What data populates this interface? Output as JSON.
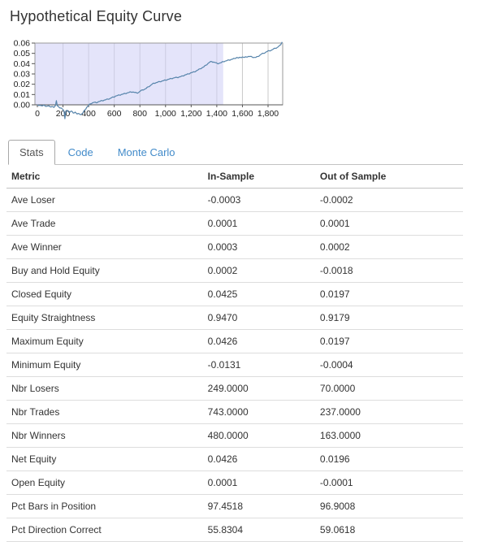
{
  "page": {
    "title": "Hypothetical Equity Curve"
  },
  "tabs": [
    {
      "label": "Stats",
      "active": true
    },
    {
      "label": "Code",
      "active": false
    },
    {
      "label": "Monte Carlo",
      "active": false
    }
  ],
  "table": {
    "columns": [
      "Metric",
      "In-Sample",
      "Out of Sample"
    ],
    "rows": [
      [
        "Ave Loser",
        "-0.0003",
        "-0.0002"
      ],
      [
        "Ave Trade",
        "0.0001",
        "0.0001"
      ],
      [
        "Ave Winner",
        "0.0003",
        "0.0002"
      ],
      [
        "Buy and Hold Equity",
        "0.0002",
        "-0.0018"
      ],
      [
        "Closed Equity",
        "0.0425",
        "0.0197"
      ],
      [
        "Equity Straightness",
        "0.9470",
        "0.9179"
      ],
      [
        "Maximum Equity",
        "0.0426",
        "0.0197"
      ],
      [
        "Minimum Equity",
        "-0.0131",
        "-0.0004"
      ],
      [
        "Nbr Losers",
        "249.0000",
        "70.0000"
      ],
      [
        "Nbr Trades",
        "743.0000",
        "237.0000"
      ],
      [
        "Nbr Winners",
        "480.0000",
        "163.0000"
      ],
      [
        "Net Equity",
        "0.0426",
        "0.0196"
      ],
      [
        "Open Equity",
        "0.0001",
        "-0.0001"
      ],
      [
        "Pct Bars in Position",
        "97.4518",
        "96.9008"
      ],
      [
        "Pct Direction Correct",
        "55.8304",
        "59.0618"
      ]
    ]
  },
  "chart_data": {
    "type": "line",
    "title": "Hypothetical Equity Curve",
    "xlabel": "",
    "ylabel": "",
    "xlim": [
      0,
      1914
    ],
    "ylim": [
      0,
      0.06
    ],
    "grid": "vertical-only",
    "legend": "none",
    "x_ticks": [
      "0",
      "200",
      "400",
      "600",
      "800",
      "1,000",
      "1,200",
      "1,400",
      "1,600",
      "1,800"
    ],
    "x_tick_values": [
      0,
      200,
      400,
      600,
      800,
      1000,
      1200,
      1400,
      1600,
      1800
    ],
    "y_ticks": [
      "0.00",
      "0.01",
      "0.02",
      "0.03",
      "0.04",
      "0.05",
      "0.06"
    ],
    "y_tick_values": [
      0,
      0.01,
      0.02,
      0.03,
      0.04,
      0.05,
      0.06
    ],
    "in_sample_region": [
      0,
      1450
    ],
    "line_color": "#5684ab",
    "shade_color": "rgba(206,206,245,0.55)",
    "grid_color": "#c9c9c9",
    "frame_color": "#999999",
    "axis_color": "#555555",
    "points": [
      [
        0,
        0
      ],
      [
        20,
        -0.0005
      ],
      [
        40,
        -0.001
      ],
      [
        55,
        -0.0005
      ],
      [
        70,
        -0.0015
      ],
      [
        85,
        -0.001
      ],
      [
        100,
        -0.002
      ],
      [
        115,
        -0.0015
      ],
      [
        130,
        -0.0025
      ],
      [
        140,
        -0.001
      ],
      [
        148,
        0.004
      ],
      [
        156,
        -0.001
      ],
      [
        170,
        -0.0025
      ],
      [
        185,
        -0.003
      ],
      [
        200,
        -0.0045
      ],
      [
        210,
        -0.0075
      ],
      [
        215,
        -0.0135
      ],
      [
        222,
        -0.006
      ],
      [
        235,
        -0.0055
      ],
      [
        250,
        -0.0075
      ],
      [
        265,
        -0.006
      ],
      [
        280,
        -0.008
      ],
      [
        295,
        -0.007
      ],
      [
        310,
        -0.009
      ],
      [
        325,
        -0.0085
      ],
      [
        340,
        -0.0095
      ],
      [
        355,
        -0.008
      ],
      [
        370,
        -0.005
      ],
      [
        385,
        -0.0025
      ],
      [
        400,
        -0.0005
      ],
      [
        415,
        0.001
      ],
      [
        430,
        0.002
      ],
      [
        445,
        0.0025
      ],
      [
        460,
        0.002
      ],
      [
        475,
        0.003
      ],
      [
        490,
        0.0035
      ],
      [
        505,
        0.004
      ],
      [
        520,
        0.0045
      ],
      [
        535,
        0.005
      ],
      [
        550,
        0.0055
      ],
      [
        565,
        0.006
      ],
      [
        580,
        0.007
      ],
      [
        595,
        0.0075
      ],
      [
        610,
        0.0085
      ],
      [
        625,
        0.009
      ],
      [
        640,
        0.0095
      ],
      [
        655,
        0.01
      ],
      [
        670,
        0.0105
      ],
      [
        685,
        0.011
      ],
      [
        700,
        0.0115
      ],
      [
        715,
        0.012
      ],
      [
        730,
        0.0125
      ],
      [
        745,
        0.0125
      ],
      [
        760,
        0.012
      ],
      [
        775,
        0.0115
      ],
      [
        790,
        0.012
      ],
      [
        805,
        0.0135
      ],
      [
        820,
        0.0145
      ],
      [
        835,
        0.015
      ],
      [
        850,
        0.016
      ],
      [
        865,
        0.0175
      ],
      [
        880,
        0.0185
      ],
      [
        895,
        0.02
      ],
      [
        910,
        0.021
      ],
      [
        925,
        0.0215
      ],
      [
        940,
        0.022
      ],
      [
        955,
        0.0225
      ],
      [
        970,
        0.023
      ],
      [
        985,
        0.0235
      ],
      [
        1000,
        0.024
      ],
      [
        1015,
        0.0245
      ],
      [
        1030,
        0.025
      ],
      [
        1045,
        0.0255
      ],
      [
        1060,
        0.026
      ],
      [
        1075,
        0.0265
      ],
      [
        1090,
        0.0265
      ],
      [
        1105,
        0.027
      ],
      [
        1120,
        0.0275
      ],
      [
        1135,
        0.028
      ],
      [
        1150,
        0.029
      ],
      [
        1165,
        0.0295
      ],
      [
        1180,
        0.03
      ],
      [
        1195,
        0.031
      ],
      [
        1210,
        0.0315
      ],
      [
        1225,
        0.032
      ],
      [
        1240,
        0.033
      ],
      [
        1255,
        0.034
      ],
      [
        1270,
        0.035
      ],
      [
        1285,
        0.036
      ],
      [
        1300,
        0.037
      ],
      [
        1315,
        0.0385
      ],
      [
        1330,
        0.04
      ],
      [
        1345,
        0.0415
      ],
      [
        1360,
        0.042
      ],
      [
        1375,
        0.0415
      ],
      [
        1390,
        0.041
      ],
      [
        1405,
        0.04
      ],
      [
        1420,
        0.0405
      ],
      [
        1435,
        0.041
      ],
      [
        1450,
        0.042
      ],
      [
        1465,
        0.0425
      ],
      [
        1480,
        0.043
      ],
      [
        1495,
        0.0435
      ],
      [
        1510,
        0.044
      ],
      [
        1525,
        0.0445
      ],
      [
        1540,
        0.045
      ],
      [
        1555,
        0.046
      ],
      [
        1570,
        0.0455
      ],
      [
        1585,
        0.046
      ],
      [
        1600,
        0.0465
      ],
      [
        1615,
        0.046
      ],
      [
        1630,
        0.0465
      ],
      [
        1645,
        0.047
      ],
      [
        1660,
        0.047
      ],
      [
        1675,
        0.0465
      ],
      [
        1690,
        0.046
      ],
      [
        1705,
        0.046
      ],
      [
        1720,
        0.047
      ],
      [
        1735,
        0.048
      ],
      [
        1750,
        0.0495
      ],
      [
        1765,
        0.05
      ],
      [
        1780,
        0.051
      ],
      [
        1795,
        0.052
      ],
      [
        1810,
        0.0525
      ],
      [
        1825,
        0.053
      ],
      [
        1840,
        0.054
      ],
      [
        1855,
        0.055
      ],
      [
        1870,
        0.0555
      ],
      [
        1885,
        0.057
      ],
      [
        1895,
        0.058
      ],
      [
        1905,
        0.06
      ],
      [
        1910,
        0.061
      ]
    ]
  }
}
